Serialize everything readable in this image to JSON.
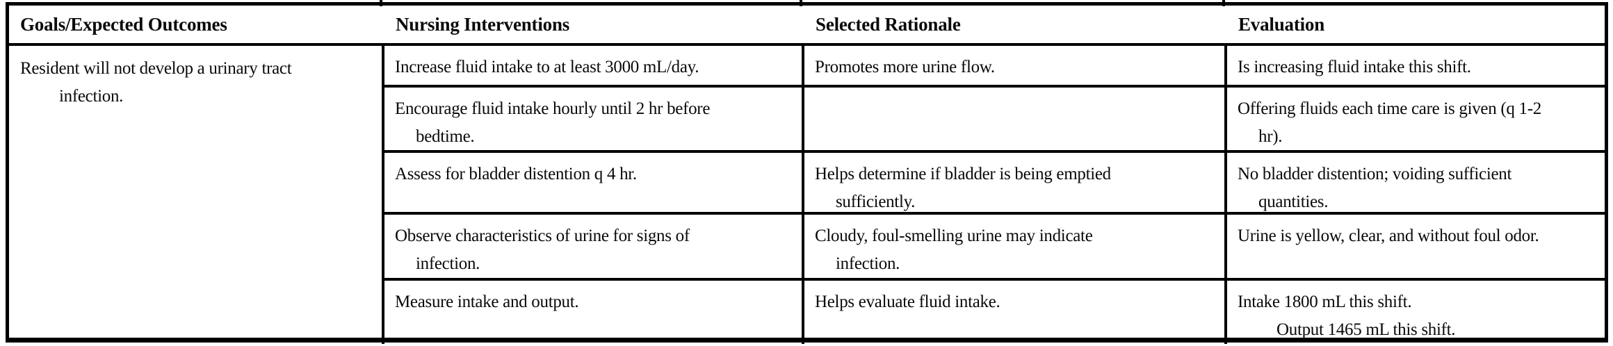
{
  "colors": {
    "ink": "#000000",
    "paper": "#ffffff"
  },
  "table": {
    "name": "nursing-care-plan-table",
    "headers": {
      "goals": "Goals/Expected Outcomes",
      "interventions": "Nursing Interventions",
      "rationale": "Selected Rationale",
      "evaluation": "Evaluation"
    },
    "goal": {
      "lines": [
        "Resident will not develop a urinary tract",
        "infection."
      ]
    },
    "rows": [
      {
        "intervention": {
          "lines": [
            "Increase fluid intake to at least 3000 mL/day."
          ]
        },
        "rationale": {
          "lines": [
            "Promotes more urine flow."
          ]
        },
        "evaluation": {
          "lines": [
            "Is increasing fluid intake this shift."
          ]
        }
      },
      {
        "intervention": {
          "lines": [
            "Encourage fluid intake hourly until 2 hr before",
            "bedtime."
          ]
        },
        "rationale": {
          "lines": []
        },
        "evaluation": {
          "lines": [
            "Offering fluids each time care is given (q 1-2",
            "hr)."
          ]
        }
      },
      {
        "intervention": {
          "lines": [
            "Assess for bladder distention q 4 hr."
          ]
        },
        "rationale": {
          "lines": [
            "Helps determine if bladder is being emptied",
            "sufficiently."
          ]
        },
        "evaluation": {
          "lines": [
            "No bladder distention; voiding sufficient",
            "quantities."
          ]
        }
      },
      {
        "intervention": {
          "lines": [
            "Observe characteristics of urine for signs of",
            "infection."
          ]
        },
        "rationale": {
          "lines": [
            "Cloudy, foul-smelling urine may indicate",
            "infection."
          ]
        },
        "evaluation": {
          "lines": [
            "Urine is yellow, clear, and without foul odor."
          ]
        }
      },
      {
        "intervention": {
          "lines": [
            "Measure intake and output."
          ]
        },
        "rationale": {
          "lines": [
            "Helps evaluate fluid intake."
          ]
        },
        "evaluation": {
          "lines": [
            "Intake 1800 mL this shift.",
            "Output 1465 mL this shift."
          ]
        }
      }
    ]
  }
}
